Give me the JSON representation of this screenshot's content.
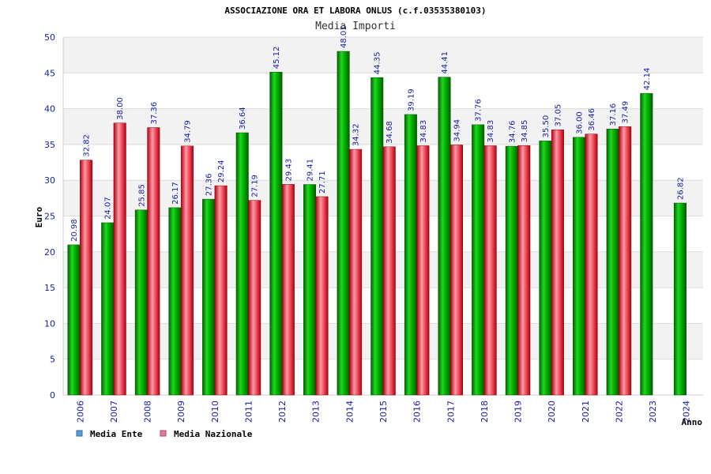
{
  "chart_data": {
    "type": "bar",
    "title": "ASSOCIAZIONE ORA ET LABORA ONLUS (c.f.03535380103)",
    "subtitle": "Media Importi",
    "xlabel": "Anno",
    "ylabel": "Euro",
    "ylim": [
      0,
      50
    ],
    "yticks": [
      0,
      5,
      10,
      15,
      20,
      25,
      30,
      35,
      40,
      45,
      50
    ],
    "categories": [
      "2006",
      "2007",
      "2008",
      "2009",
      "2010",
      "2011",
      "2012",
      "2013",
      "2014",
      "2015",
      "2016",
      "2017",
      "2018",
      "2019",
      "2020",
      "2021",
      "2022",
      "2023",
      "2024"
    ],
    "series": [
      {
        "name": "Media Ente",
        "color": "#00a000",
        "legend_color": "#5b9bd5",
        "values": [
          20.98,
          24.07,
          25.85,
          26.17,
          27.36,
          36.64,
          45.12,
          29.41,
          48.01,
          44.35,
          39.19,
          44.41,
          37.76,
          34.76,
          35.5,
          36.0,
          37.16,
          42.14,
          26.82
        ],
        "labels": [
          "20.98",
          "24.07",
          "25.85",
          "26.17",
          "27.36",
          "36.64",
          "45.12",
          "29.41",
          "48.01",
          "44.35",
          "39.19",
          "44.41",
          "37.76",
          "34.76",
          "35.50",
          "36.00",
          "37.16",
          "42.14",
          "26.82"
        ]
      },
      {
        "name": "Media Nazionale",
        "color": "#e02030",
        "legend_color": "#e07a9a",
        "values": [
          32.82,
          38.0,
          37.36,
          34.79,
          29.24,
          27.19,
          29.43,
          27.71,
          34.32,
          34.68,
          34.83,
          34.94,
          34.83,
          34.85,
          37.05,
          36.46,
          37.49,
          null,
          null
        ],
        "labels": [
          "32.82",
          "38.00",
          "37.36",
          "34.79",
          "29.24",
          "27.19",
          "29.43",
          "27.71",
          "34.32",
          "34.68",
          "34.83",
          "34.94",
          "34.83",
          "34.85",
          "37.05",
          "36.46",
          "37.49",
          null,
          null
        ]
      }
    ],
    "grid": true,
    "legend_position": "bottom-left"
  }
}
